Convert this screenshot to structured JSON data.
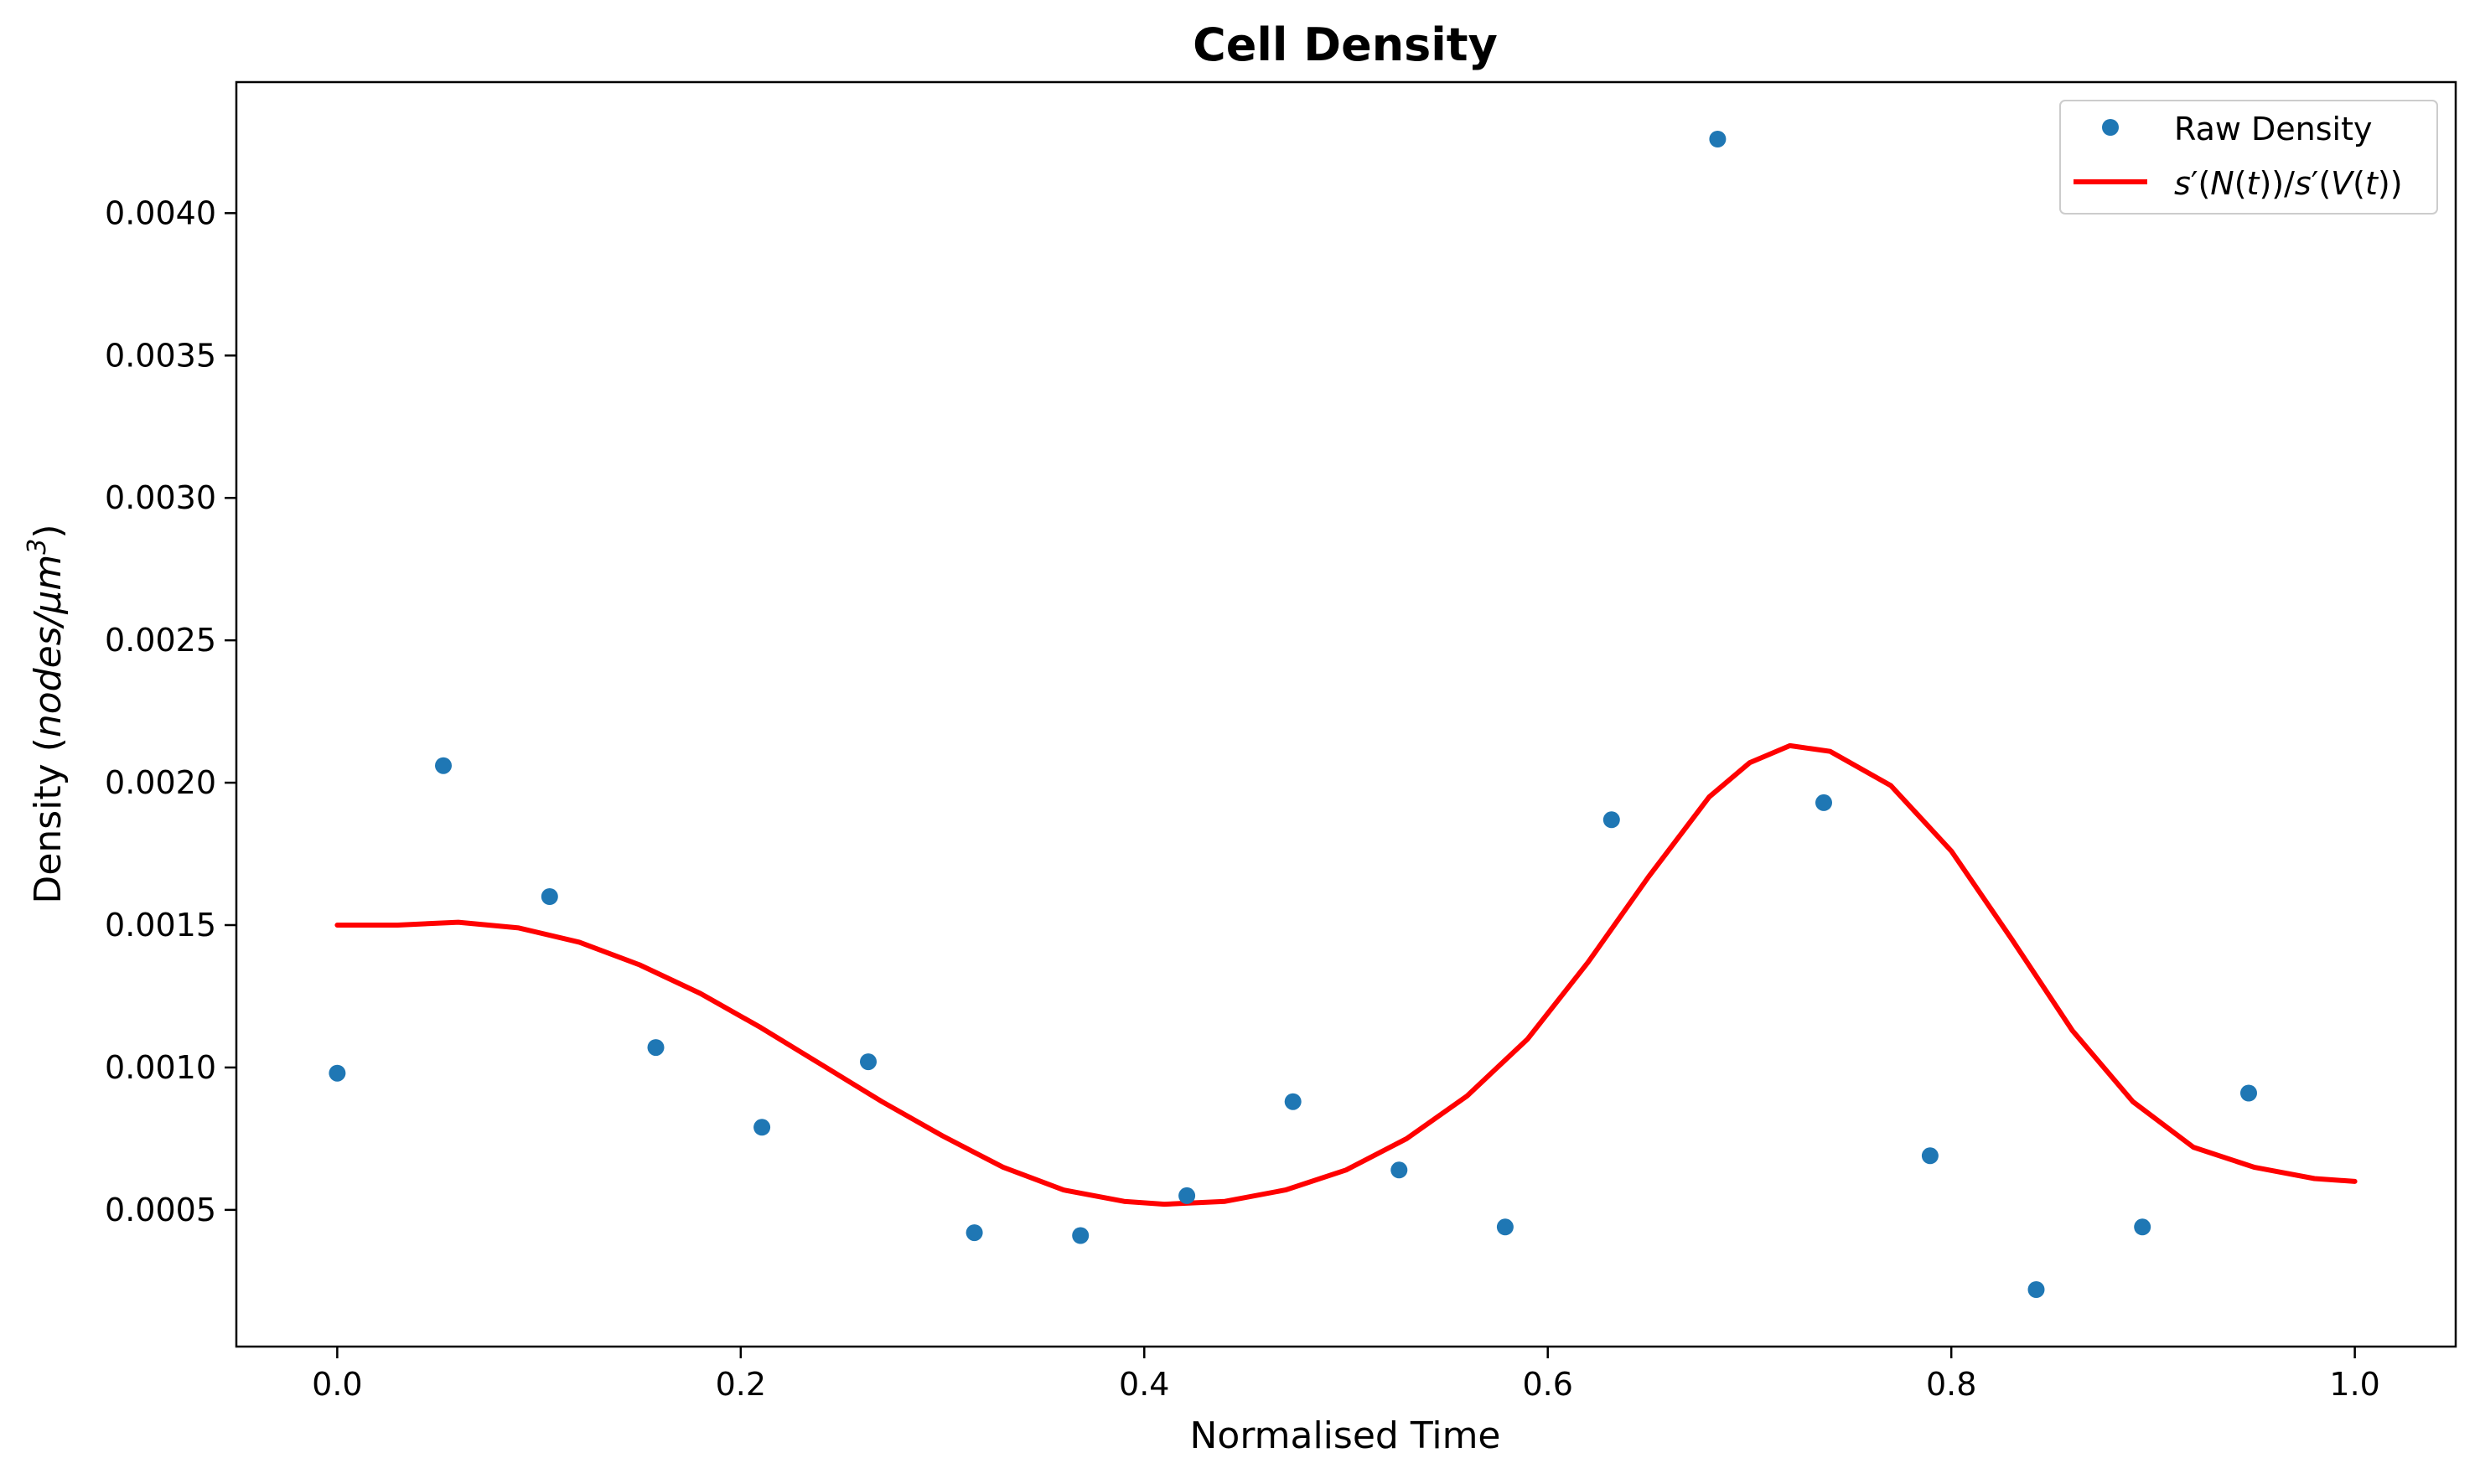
{
  "chart_data": {
    "type": "scatter",
    "title": "Cell Density",
    "xlabel": "Normalised Time",
    "ylabel": {
      "prefix": "Density (",
      "italic": "nodes/μm",
      "superscript": "3",
      "suffix": ")"
    },
    "xlim": [
      -0.05,
      1.05
    ],
    "ylim": [
      2e-05,
      0.00446
    ],
    "x_ticks": [
      {
        "value": 0.0,
        "label": "0.0"
      },
      {
        "value": 0.2,
        "label": "0.2"
      },
      {
        "value": 0.4,
        "label": "0.4"
      },
      {
        "value": 0.6,
        "label": "0.6"
      },
      {
        "value": 0.8,
        "label": "0.8"
      },
      {
        "value": 1.0,
        "label": "1.0"
      }
    ],
    "y_ticks": [
      {
        "value": 0.0005,
        "label": "0.0005"
      },
      {
        "value": 0.001,
        "label": "0.0010"
      },
      {
        "value": 0.0015,
        "label": "0.0015"
      },
      {
        "value": 0.002,
        "label": "0.0020"
      },
      {
        "value": 0.0025,
        "label": "0.0025"
      },
      {
        "value": 0.003,
        "label": "0.0030"
      },
      {
        "value": 0.0035,
        "label": "0.0035"
      },
      {
        "value": 0.004,
        "label": "0.0040"
      }
    ],
    "grid": false,
    "legend_position": "top-right",
    "series": [
      {
        "name": "Raw Density",
        "kind": "scatter",
        "color": "#1f77b4",
        "points": [
          {
            "x": 0.0,
            "y": 0.00098
          },
          {
            "x": 0.0526,
            "y": 0.00206
          },
          {
            "x": 0.1053,
            "y": 0.0016
          },
          {
            "x": 0.1579,
            "y": 0.00107
          },
          {
            "x": 0.2105,
            "y": 0.00079
          },
          {
            "x": 0.2632,
            "y": 0.00102
          },
          {
            "x": 0.3158,
            "y": 0.00042
          },
          {
            "x": 0.3684,
            "y": 0.00041
          },
          {
            "x": 0.4211,
            "y": 0.00055
          },
          {
            "x": 0.4737,
            "y": 0.00088
          },
          {
            "x": 0.5263,
            "y": 0.00064
          },
          {
            "x": 0.5789,
            "y": 0.00044
          },
          {
            "x": 0.6316,
            "y": 0.00187
          },
          {
            "x": 0.6842,
            "y": 0.00426
          },
          {
            "x": 0.7368,
            "y": 0.00193
          },
          {
            "x": 0.7895,
            "y": 0.00069
          },
          {
            "x": 0.8421,
            "y": 0.00022
          },
          {
            "x": 0.8947,
            "y": 0.00044
          },
          {
            "x": 0.9474,
            "y": 0.00091
          }
        ]
      },
      {
        "name": "s′(N(t))/s′(V(t))",
        "kind": "line",
        "color": "#ff0000",
        "points": [
          {
            "x": 0.0,
            "y": 0.0015
          },
          {
            "x": 0.03,
            "y": 0.0015
          },
          {
            "x": 0.06,
            "y": 0.00151
          },
          {
            "x": 0.09,
            "y": 0.00149
          },
          {
            "x": 0.12,
            "y": 0.00144
          },
          {
            "x": 0.15,
            "y": 0.00136
          },
          {
            "x": 0.18,
            "y": 0.00126
          },
          {
            "x": 0.21,
            "y": 0.00114
          },
          {
            "x": 0.24,
            "y": 0.00101
          },
          {
            "x": 0.27,
            "y": 0.00088
          },
          {
            "x": 0.3,
            "y": 0.00076
          },
          {
            "x": 0.33,
            "y": 0.00065
          },
          {
            "x": 0.36,
            "y": 0.00057
          },
          {
            "x": 0.39,
            "y": 0.00053
          },
          {
            "x": 0.41,
            "y": 0.00052
          },
          {
            "x": 0.44,
            "y": 0.00053
          },
          {
            "x": 0.47,
            "y": 0.00057
          },
          {
            "x": 0.5,
            "y": 0.00064
          },
          {
            "x": 0.53,
            "y": 0.00075
          },
          {
            "x": 0.56,
            "y": 0.0009
          },
          {
            "x": 0.59,
            "y": 0.0011
          },
          {
            "x": 0.62,
            "y": 0.00137
          },
          {
            "x": 0.65,
            "y": 0.00167
          },
          {
            "x": 0.68,
            "y": 0.00195
          },
          {
            "x": 0.7,
            "y": 0.00207
          },
          {
            "x": 0.72,
            "y": 0.00213
          },
          {
            "x": 0.74,
            "y": 0.00211
          },
          {
            "x": 0.77,
            "y": 0.00199
          },
          {
            "x": 0.8,
            "y": 0.00176
          },
          {
            "x": 0.83,
            "y": 0.00145
          },
          {
            "x": 0.86,
            "y": 0.00113
          },
          {
            "x": 0.89,
            "y": 0.00088
          },
          {
            "x": 0.92,
            "y": 0.00072
          },
          {
            "x": 0.95,
            "y": 0.00065
          },
          {
            "x": 0.98,
            "y": 0.00061
          },
          {
            "x": 1.0,
            "y": 0.0006
          }
        ]
      }
    ],
    "legend": {
      "raw_label": "Raw Density",
      "fit_label": {
        "s1": "s",
        "p1": "′(",
        "n": "N",
        "p2": "(",
        "t1": "t",
        "p3": "))/",
        "s2": "s",
        "p4": "′(",
        "v": "V",
        "p5": "(",
        "t2": "t",
        "p6": "))"
      }
    }
  }
}
